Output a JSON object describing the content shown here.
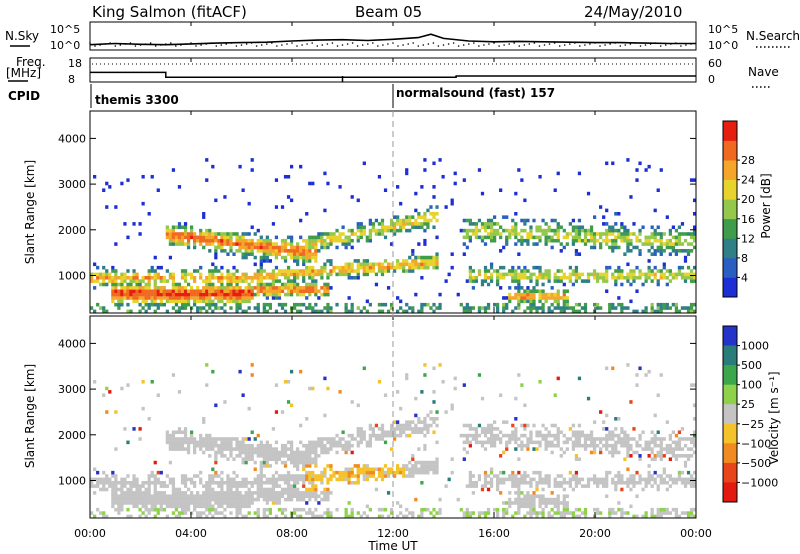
{
  "header": {
    "station": "King Salmon (fitACF)",
    "beam": "Beam 05",
    "date": "24/May/2010"
  },
  "side_labels": {
    "nsky": "N.Sky",
    "nsearch": "N.Search",
    "freq_line1": "Freq.",
    "freq_line2": "[MHz]",
    "nave": "Nave",
    "cpid": "CPID"
  },
  "cpid_modes": [
    {
      "label": "themis 3300",
      "start_hour": 0,
      "end_hour": 12
    },
    {
      "label": "normalsound (fast) 157",
      "start_hour": 12,
      "end_hour": 24
    }
  ],
  "chart_data": [
    {
      "type": "line",
      "panel": "noise",
      "left_axis": {
        "label": "N.Sky",
        "ticks": [
          "10^5",
          "10^0"
        ]
      },
      "right_axis": {
        "label": "N.Search",
        "ticks": [
          "10^5",
          "10^0"
        ]
      },
      "x": [
        0,
        1,
        2,
        3,
        4,
        5,
        6,
        7,
        8,
        9,
        10,
        11,
        12,
        13,
        13.5,
        14,
        15,
        16,
        17,
        18,
        19,
        20,
        21,
        22,
        23,
        24
      ],
      "series": [
        {
          "values": [
            0.3,
            0.6,
            0.4,
            0.3,
            0.5,
            0.7,
            0.8,
            0.9,
            1.2,
            1.4,
            1.5,
            1.3,
            1.6,
            2.0,
            2.8,
            1.8,
            1.2,
            1.0,
            1.1,
            1.0,
            0.9,
            0.8,
            0.8,
            0.7,
            0.6,
            0.6
          ]
        }
      ]
    },
    {
      "type": "line",
      "panel": "frequency-nave",
      "left_axis": {
        "label": "Freq. [MHz]",
        "ticks": [
          "18",
          "8"
        ]
      },
      "right_axis": {
        "label": "Nave",
        "ticks": [
          "60",
          "0"
        ]
      },
      "frequency_steps": [
        {
          "start": 0,
          "end": 3,
          "value": 12
        },
        {
          "start": 3,
          "end": 14.5,
          "value": 10
        },
        {
          "start": 14.5,
          "end": 24,
          "value": 10.5
        }
      ],
      "nave_level": 45
    },
    {
      "type": "heatmap",
      "panel": "power",
      "ylabel": "Slant Range [km]",
      "y_ticks": [
        1000,
        2000,
        3000,
        4000
      ],
      "ylim": [
        180,
        4600
      ],
      "xlim": [
        0,
        24
      ],
      "colorbar": {
        "label": "Power [dB]",
        "ticks": [
          "4",
          "8",
          "12",
          "16",
          "20",
          "24",
          "28"
        ],
        "colors": [
          "#1d2fd4",
          "#2a5fc2",
          "#2e7f86",
          "#3f9c4a",
          "#94c84c",
          "#e8d32c",
          "#f4a62a",
          "#ef6a20",
          "#e51e10"
        ]
      }
    },
    {
      "type": "heatmap",
      "panel": "velocity",
      "ylabel": "Slant Range [km]",
      "y_ticks": [
        1000,
        2000,
        3000,
        4000
      ],
      "ylim": [
        180,
        4600
      ],
      "xlim": [
        0,
        24
      ],
      "x_ticks": [
        "00:00",
        "04:00",
        "08:00",
        "12:00",
        "16:00",
        "20:00",
        "00:00"
      ],
      "xlabel": "Time UT",
      "colorbar": {
        "label": "Velocity [m s⁻¹]",
        "ticks": [
          "1000",
          "500",
          "100",
          "25",
          "−25",
          "−100",
          "−500",
          "−1000"
        ],
        "colors": [
          "#2433c8",
          "#2a7c7a",
          "#3ba64c",
          "#8ed24a",
          "#c4c4c4",
          "#f4c22a",
          "#f28a22",
          "#e8461a",
          "#e31a10"
        ]
      }
    }
  ]
}
